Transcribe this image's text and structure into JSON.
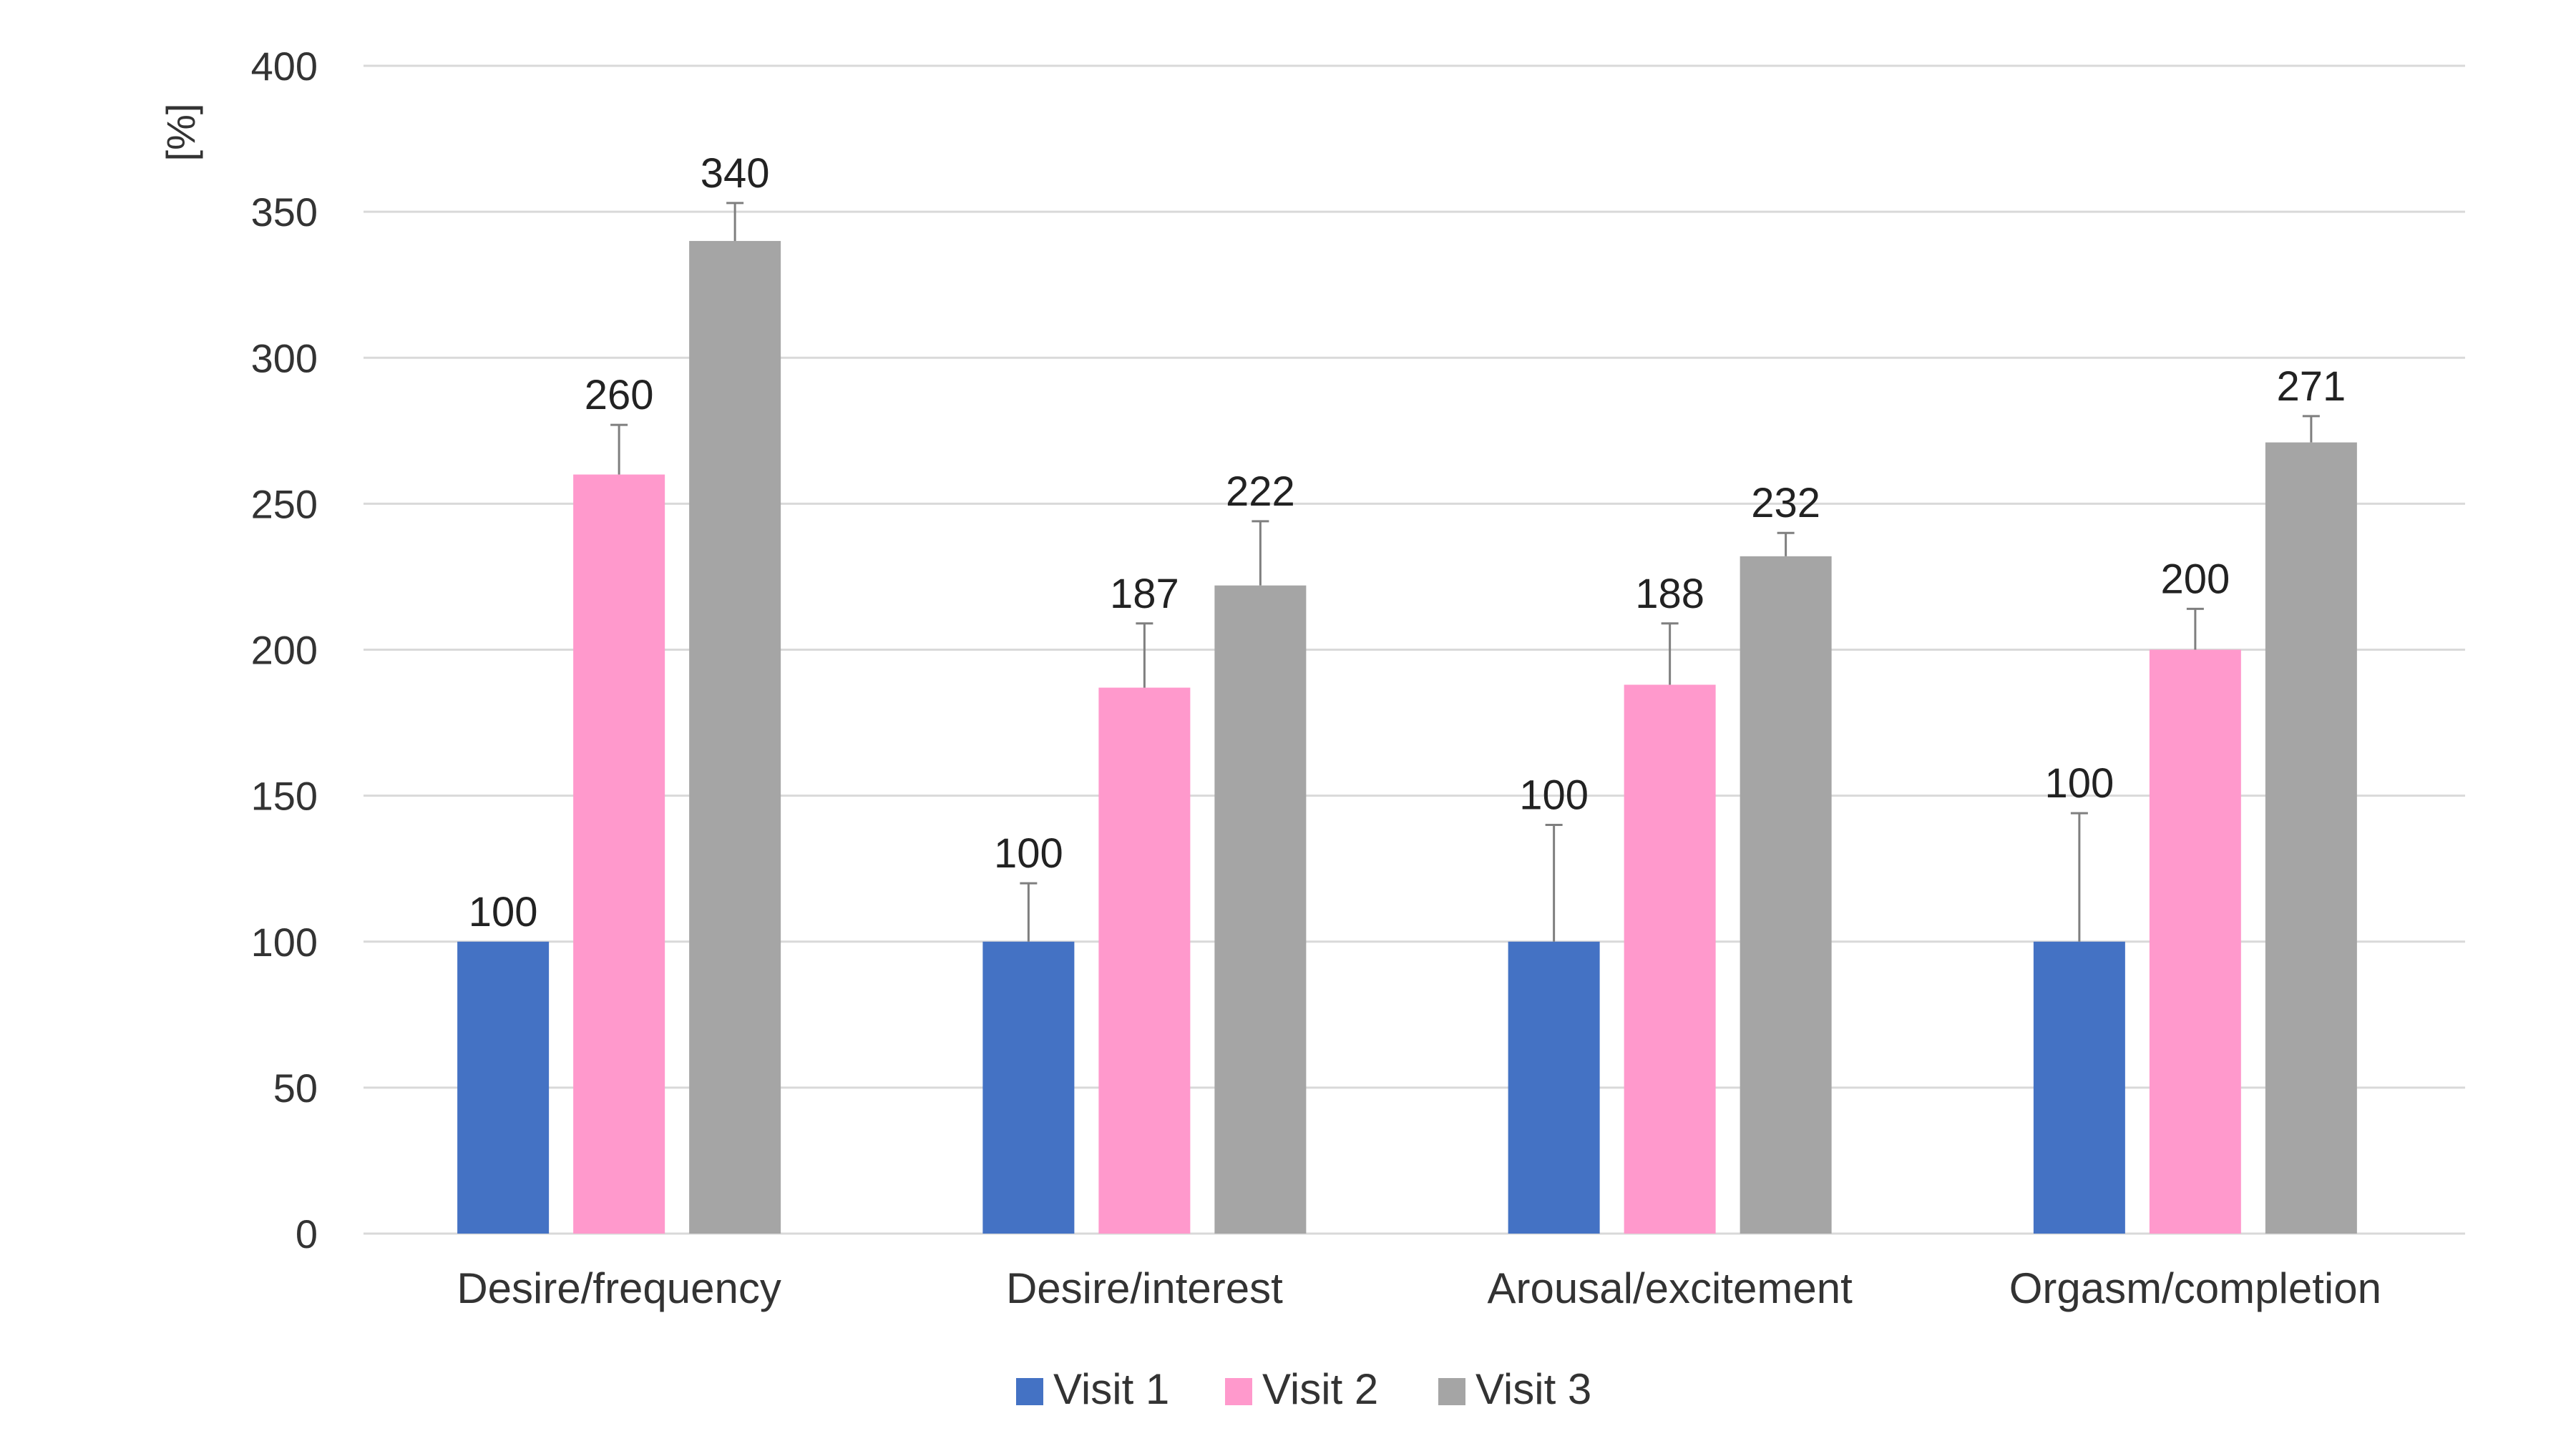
{
  "chart_data": {
    "type": "bar",
    "title": "",
    "xlabel": "",
    "ylabel": "[%]",
    "ylim": [
      0,
      400
    ],
    "yticks": [
      0,
      50,
      100,
      150,
      200,
      250,
      300,
      350,
      400
    ],
    "grid": true,
    "legend_position": "bottom",
    "categories": [
      "Desire/frequency",
      "Desire/interest",
      "Arousal/excitement",
      "Orgasm/completion"
    ],
    "series": [
      {
        "name": "Visit 1",
        "color": "#4472C4",
        "values": [
          100,
          100,
          100,
          100
        ],
        "error_upper": [
          0,
          20,
          40,
          44
        ]
      },
      {
        "name": "Visit 2",
        "color": "#FF99CC",
        "values": [
          260,
          187,
          188,
          200
        ],
        "error_upper": [
          17,
          22,
          21,
          14
        ]
      },
      {
        "name": "Visit 3",
        "color": "#A5A5A5",
        "values": [
          340,
          222,
          232,
          271
        ],
        "error_upper": [
          13,
          22,
          8,
          9
        ]
      }
    ]
  }
}
